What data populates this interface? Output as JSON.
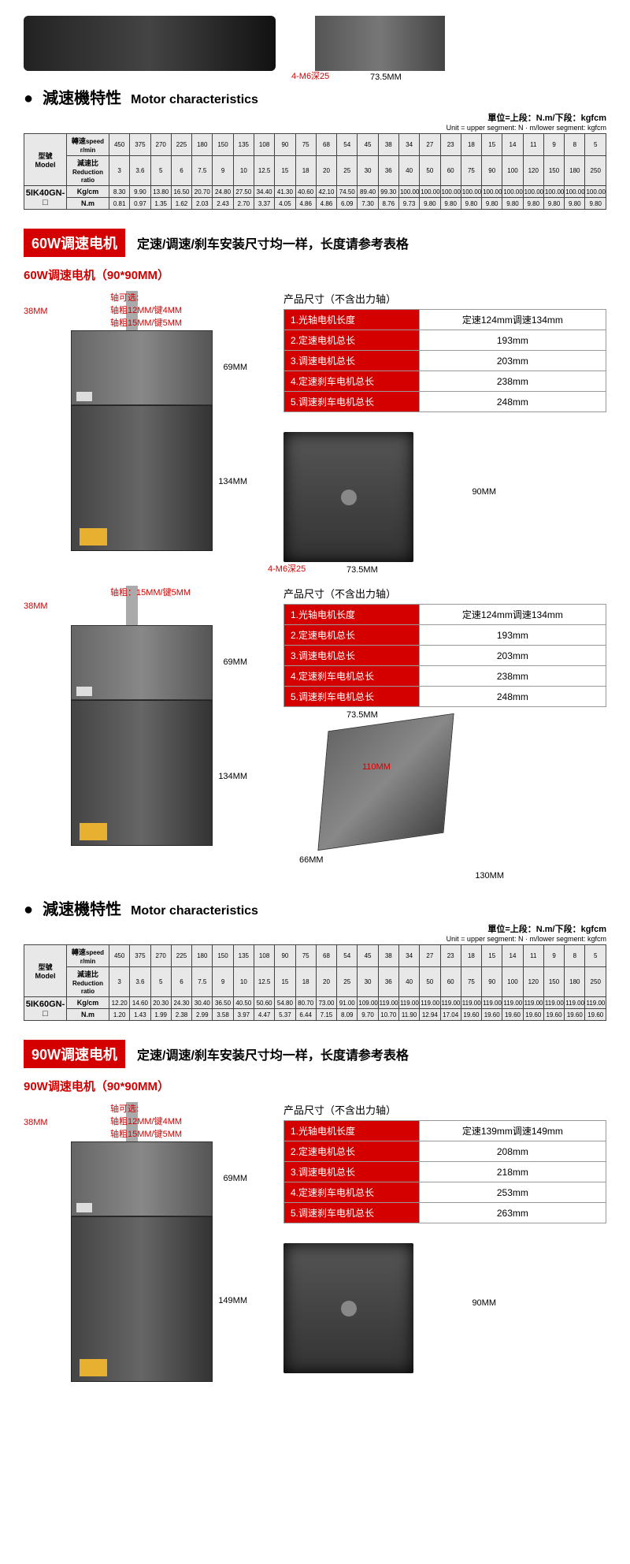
{
  "top": {
    "hole": "4-M6深25",
    "width": "73.5MM"
  },
  "char40": {
    "title_cn": "減速機特性",
    "title_en": "Motor characteristics",
    "unit_bold": "單位=上段：N.m/下段：kgfcm",
    "unit_small": "Unit = upper segment: N · m/lower segment: kgfcm",
    "model_label_cn": "型號",
    "model_label_en": "Model",
    "speed_label_cn": "轉速",
    "speed_label_en": "speed r/min",
    "ratio_label_cn": "減速比",
    "ratio_label_en": "Reduction ratio",
    "kgcm": "Kg/cm",
    "nm": "N.m",
    "model": "5IK40GN-□",
    "speeds": [
      "450",
      "375",
      "270",
      "225",
      "180",
      "150",
      "135",
      "108",
      "90",
      "75",
      "68",
      "54",
      "45",
      "38",
      "34",
      "27",
      "23",
      "18",
      "15",
      "14",
      "11",
      "9",
      "8",
      "5"
    ],
    "ratios": [
      "3",
      "3.6",
      "5",
      "6",
      "7.5",
      "9",
      "10",
      "12.5",
      "15",
      "18",
      "20",
      "25",
      "30",
      "36",
      "40",
      "50",
      "60",
      "75",
      "90",
      "100",
      "120",
      "150",
      "180",
      "250"
    ],
    "row_kg": [
      "8.30",
      "9.90",
      "13.80",
      "16.50",
      "20.70",
      "24.80",
      "27.50",
      "34.40",
      "41.30",
      "40.60",
      "42.10",
      "74.50",
      "89.40",
      "99.30",
      "100.00",
      "100.00",
      "100.00",
      "100.00",
      "100.00",
      "100.00",
      "100.00",
      "100.00",
      "100.00",
      "100.00"
    ],
    "row_nm": [
      "0.81",
      "0.97",
      "1.35",
      "1.62",
      "2.03",
      "2.43",
      "2.70",
      "3.37",
      "4.05",
      "4.86",
      "4.86",
      "6.09",
      "7.30",
      "8.76",
      "9.73",
      "9.80",
      "9.80",
      "9.80",
      "9.80",
      "9.80",
      "9.80",
      "9.80",
      "9.80",
      "9.80"
    ]
  },
  "banner60": {
    "tag": "60W调速电机",
    "text": "定速/调速/刹车安装尺寸均一样，长度请参考表格",
    "subhead": "60W调速电机（90*90MM）"
  },
  "diag60": {
    "shaft_opt_title": "轴可选:",
    "shaft_opt1": "轴粗12MM/键4MM",
    "shaft_opt2": "轴粗15MM/键5MM",
    "d38": "38MM",
    "gearbox_h": "69MM",
    "motor_h": "134MM",
    "front_hole": "4-M6深25",
    "front_w": "73.5MM",
    "front_h": "90MM"
  },
  "spec60": {
    "title": "产品尺寸（不含出力轴）",
    "rows": [
      {
        "k": "1.光轴电机长度",
        "v": "定速124mm调速134mm"
      },
      {
        "k": "2.定速电机总长",
        "v": "193mm"
      },
      {
        "k": "3.调速电机总长",
        "v": "203mm"
      },
      {
        "k": "4.定速刹车电机总长",
        "v": "238mm"
      },
      {
        "k": "5.调速刹车电机总长",
        "v": "248mm"
      }
    ]
  },
  "diag60b": {
    "shaft_note": "轴粗：15MM/键5MM",
    "d38": "38MM",
    "gearbox_h": "69MM",
    "motor_h": "134MM",
    "top_w": "73.5MM",
    "side_w": "66MM",
    "depth": "130MM",
    "inner": "110MM"
  },
  "char60": {
    "title_cn": "減速機特性",
    "title_en": "Motor characteristics",
    "model": "5IK60GN-□",
    "row_kg": [
      "12.20",
      "14.60",
      "20.30",
      "24.30",
      "30.40",
      "36.50",
      "40.50",
      "50.60",
      "54.80",
      "80.70",
      "73.00",
      "91.00",
      "109.00",
      "119.00",
      "119.00",
      "119.00",
      "119.00",
      "119.00",
      "119.00",
      "119.00",
      "119.00",
      "119.00",
      "119.00",
      "119.00"
    ],
    "row_nm": [
      "1.20",
      "1.43",
      "1.99",
      "2.38",
      "2.99",
      "3.58",
      "3.97",
      "4.47",
      "5.37",
      "6.44",
      "7.15",
      "8.09",
      "9.70",
      "10.70",
      "11.90",
      "12.94",
      "17.04",
      "19.60",
      "19.60",
      "19.60",
      "19.60",
      "19.60",
      "19.60",
      "19.60"
    ]
  },
  "banner90": {
    "tag": "90W调速电机",
    "text": "定速/调速/刹车安装尺寸均一样，长度请参考表格",
    "subhead": "90W调速电机（90*90MM）"
  },
  "diag90": {
    "shaft_opt_title": "轴可选:",
    "shaft_opt1": "轴粗12MM/键4MM",
    "shaft_opt2": "轴粗15MM/键5MM",
    "d38": "38MM",
    "gearbox_h": "69MM",
    "motor_h": "149MM",
    "front_h": "90MM"
  },
  "spec90": {
    "title": "产品尺寸（不含出力轴）",
    "rows": [
      {
        "k": "1.光轴电机长度",
        "v": "定速139mm调速149mm"
      },
      {
        "k": "2.定速电机总长",
        "v": "208mm"
      },
      {
        "k": "3.调速电机总长",
        "v": "218mm"
      },
      {
        "k": "4.定速刹车电机总长",
        "v": "253mm"
      },
      {
        "k": "5.调速刹车电机总长",
        "v": "263mm"
      }
    ]
  }
}
